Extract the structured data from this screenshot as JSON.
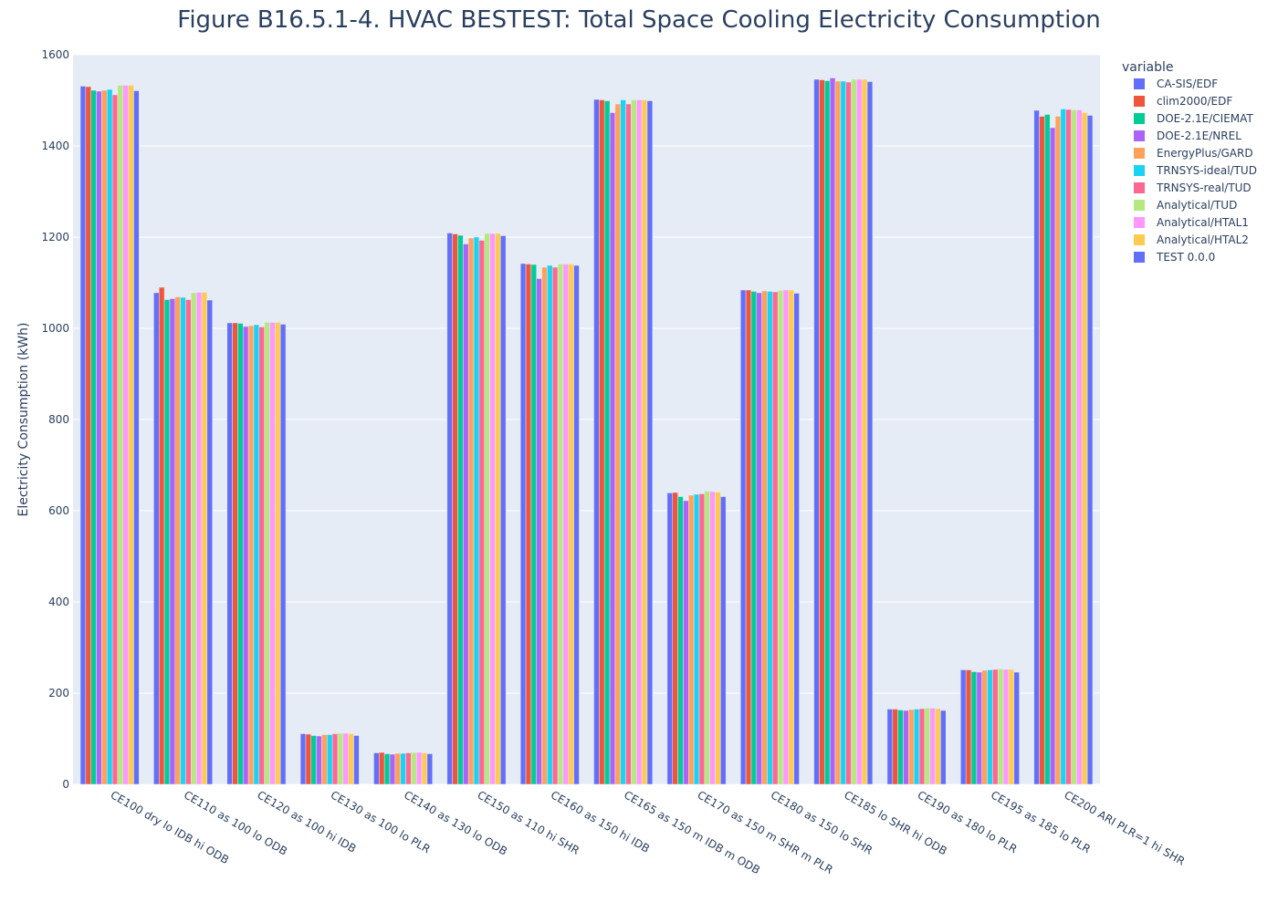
{
  "chart_data": {
    "type": "bar",
    "title": "Figure B16.5.1-4. HVAC BESTEST: Total Space Cooling Electricity Consumption",
    "xlabel": "",
    "ylabel": "Electricity Consumption  (kWh)",
    "ylim": [
      0,
      1600
    ],
    "yticks": [
      0,
      200,
      400,
      600,
      800,
      1000,
      1200,
      1400,
      1600
    ],
    "legend_title": "variable",
    "legend_position": "right",
    "grid": true,
    "categories": [
      "CE100 dry lo IDB hi ODB",
      "CE110 as 100 lo ODB",
      "CE120 as 100 hi IDB",
      "CE130 as 100 lo PLR",
      "CE140 as 130 lo ODB",
      "CE150 as 110 hi SHR",
      "CE160 as 150 hi IDB",
      "CE165 as 150 m IDB m ODB",
      "CE170 as 150 m SHR m PLR",
      "CE180 as 150 lo SHR",
      "CE185 lo SHR hi ODB",
      "CE190 as 180 lo PLR",
      "CE195 as 185 lo PLR",
      "CE200 ARI  PLR=1 hi SHR"
    ],
    "series": [
      {
        "name": "CA-SIS/EDF",
        "color": "#636efa",
        "values": [
          1531,
          1078,
          1012,
          111,
          69,
          1209,
          1142,
          1502,
          639,
          1084,
          1546,
          165,
          251,
          1478
        ]
      },
      {
        "name": "clim2000/EDF",
        "color": "#ef553b",
        "values": [
          1530,
          1090,
          1012,
          110,
          70,
          1207,
          1141,
          1501,
          640,
          1084,
          1545,
          165,
          251,
          1465
        ]
      },
      {
        "name": "DOE-2.1E/CIEMAT",
        "color": "#00cc96",
        "values": [
          1522,
          1063,
          1011,
          107,
          67,
          1204,
          1140,
          1499,
          631,
          1081,
          1543,
          163,
          247,
          1469
        ]
      },
      {
        "name": "DOE-2.1E/NREL",
        "color": "#ab63fa",
        "values": [
          1520,
          1065,
          1004,
          106,
          66,
          1185,
          1109,
          1473,
          622,
          1078,
          1549,
          162,
          246,
          1440
        ]
      },
      {
        "name": "EnergyPlus/GARD",
        "color": "#ffa15a",
        "values": [
          1522,
          1069,
          1006,
          109,
          68,
          1198,
          1134,
          1492,
          634,
          1082,
          1542,
          164,
          250,
          1465
        ]
      },
      {
        "name": "TRNSYS-ideal/TUD",
        "color": "#19d3f3",
        "values": [
          1524,
          1068,
          1008,
          109,
          68,
          1200,
          1138,
          1501,
          636,
          1081,
          1542,
          165,
          251,
          1481
        ]
      },
      {
        "name": "TRNSYS-real/TUD",
        "color": "#ff6692",
        "values": [
          1512,
          1063,
          1003,
          111,
          69,
          1193,
          1134,
          1492,
          637,
          1080,
          1540,
          166,
          252,
          1480
        ]
      },
      {
        "name": "Analytical/TUD",
        "color": "#b6e880",
        "values": [
          1533,
          1078,
          1013,
          112,
          70,
          1208,
          1141,
          1501,
          643,
          1083,
          1546,
          167,
          253,
          1479
        ]
      },
      {
        "name": "Analytical/HTAL1",
        "color": "#ff97ff",
        "values": [
          1533,
          1079,
          1013,
          112,
          70,
          1208,
          1141,
          1501,
          642,
          1084,
          1546,
          167,
          252,
          1479
        ]
      },
      {
        "name": "Analytical/HTAL2",
        "color": "#fecb52",
        "values": [
          1533,
          1079,
          1013,
          111,
          69,
          1208,
          1141,
          1501,
          641,
          1084,
          1546,
          166,
          252,
          1473
        ]
      },
      {
        "name": "TEST 0.0.0",
        "color": "#636efa",
        "values": [
          1521,
          1062,
          1009,
          107,
          67,
          1203,
          1138,
          1499,
          631,
          1077,
          1541,
          162,
          246,
          1467
        ]
      }
    ]
  }
}
